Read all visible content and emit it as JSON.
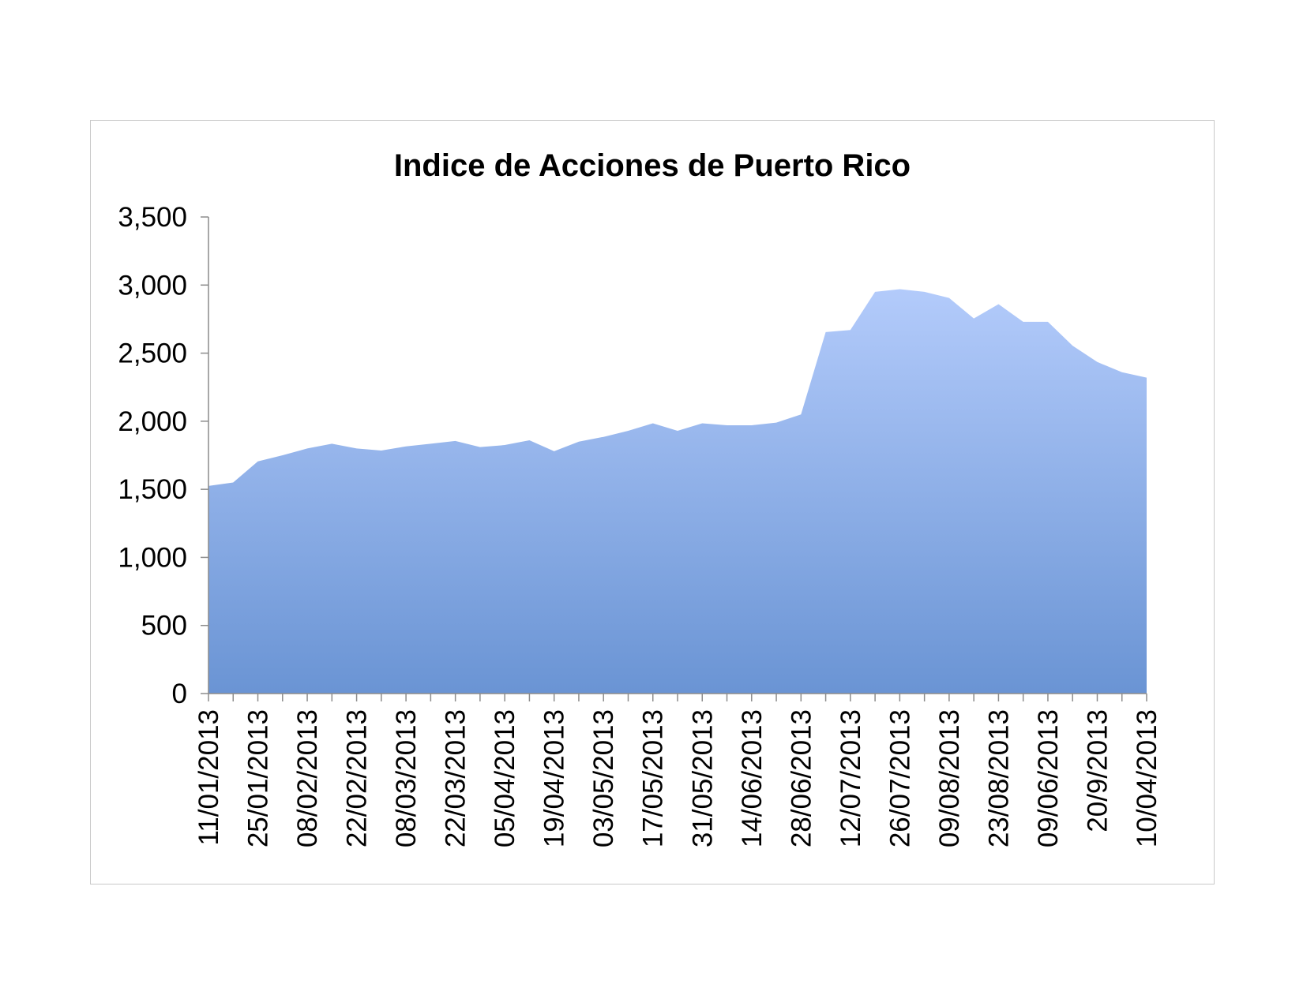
{
  "chart_data": {
    "type": "area",
    "title": "Indice de Acciones de Puerto Rico",
    "xlabel": "",
    "ylabel": "",
    "ylim": [
      0,
      3500
    ],
    "yticks": [
      0,
      500,
      1000,
      1500,
      2000,
      2500,
      3000,
      3500
    ],
    "ytick_labels": [
      "0",
      "500",
      "1,000",
      "1,500",
      "2,000",
      "2,500",
      "3,000",
      "3,500"
    ],
    "grid": false,
    "legend": "none",
    "fill_color_top": "#b3cbfb",
    "fill_color_bottom": "#6a94d4",
    "x_tick_labels": [
      {
        "index": 0,
        "label": "11/01/2013"
      },
      {
        "index": 2,
        "label": "25/01/2013"
      },
      {
        "index": 4,
        "label": "08/02/2013"
      },
      {
        "index": 6,
        "label": "22/02/2013"
      },
      {
        "index": 8,
        "label": "08/03/2013"
      },
      {
        "index": 10,
        "label": "22/03/2013"
      },
      {
        "index": 12,
        "label": "05/04/2013"
      },
      {
        "index": 14,
        "label": "19/04/2013"
      },
      {
        "index": 16,
        "label": "03/05/2013"
      },
      {
        "index": 18,
        "label": "17/05/2013"
      },
      {
        "index": 20,
        "label": "31/05/2013"
      },
      {
        "index": 22,
        "label": "14/06/2013"
      },
      {
        "index": 24,
        "label": "28/06/2013"
      },
      {
        "index": 26,
        "label": "12/07/2013"
      },
      {
        "index": 28,
        "label": "26/07/2013"
      },
      {
        "index": 30,
        "label": "09/08/2013"
      },
      {
        "index": 32,
        "label": "23/08/2013"
      },
      {
        "index": 34,
        "label": "09/06/2013"
      },
      {
        "index": 36,
        "label": "20/9/2013"
      },
      {
        "index": 38,
        "label": "10/04/2013"
      }
    ],
    "series": [
      {
        "values": [
          1525,
          1550,
          1705,
          1750,
          1800,
          1835,
          1800,
          1785,
          1815,
          1835,
          1855,
          1810,
          1825,
          1860,
          1780,
          1850,
          1885,
          1930,
          1985,
          1930,
          1985,
          1970,
          1970,
          1990,
          2050,
          2655,
          2670,
          2950,
          2970,
          2950,
          2905,
          2755,
          2860,
          2730,
          2730,
          2555,
          2435,
          2360,
          2320
        ]
      }
    ]
  }
}
